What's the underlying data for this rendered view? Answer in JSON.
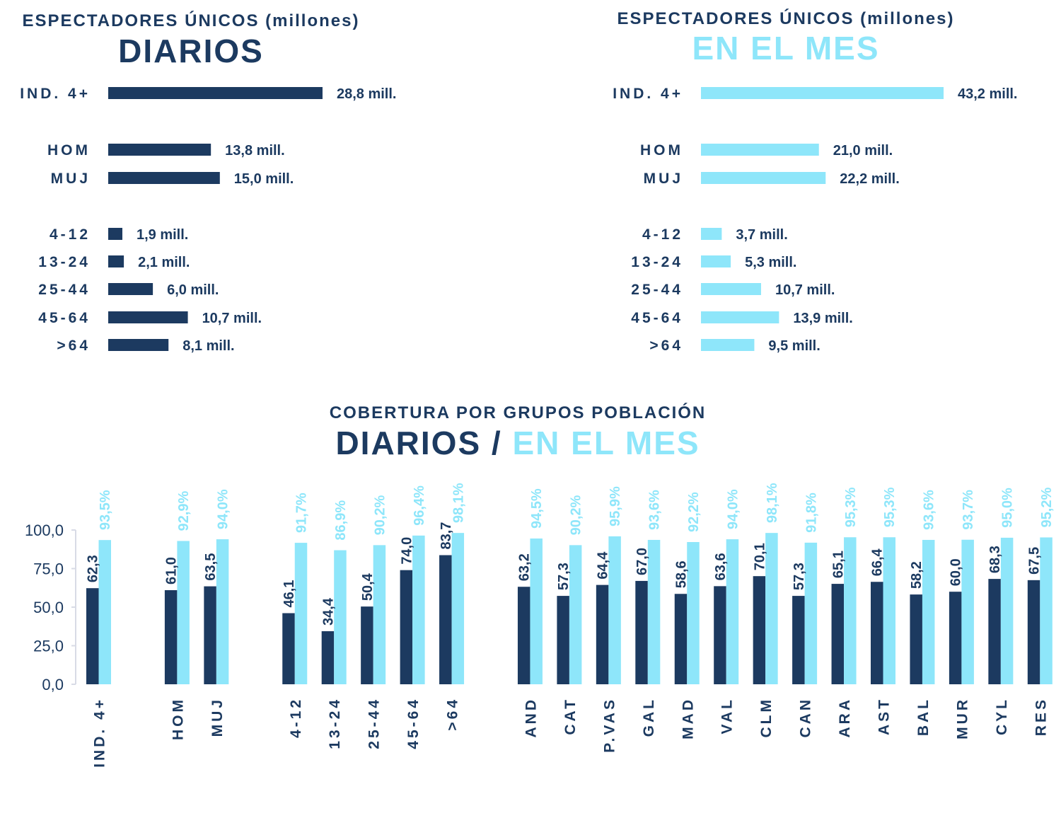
{
  "colors": {
    "dark": "#1c3a60",
    "light": "#8ee6fa",
    "axis": "#d8dbe6",
    "tick": "#1c3a60"
  },
  "chart_data": [
    {
      "type": "bar",
      "orientation": "horizontal",
      "title": "ESPECTADORES ÚNICOS (millones)",
      "subtitle": "DIARIOS",
      "categories": [
        "IND. 4+",
        "HOM",
        "MUJ",
        "4-12",
        "13-24",
        "25-44",
        "45-64",
        ">64"
      ],
      "values": [
        28.8,
        13.8,
        15.0,
        1.9,
        2.1,
        6.0,
        10.7,
        8.1
      ],
      "data_labels": [
        "28,8 mill.",
        "13,8 mill.",
        "15,0 mill.",
        "1,9 mill.",
        "2,1 mill.",
        "6,0 mill.",
        "10,7 mill.",
        "8,1 mill."
      ]
    },
    {
      "type": "bar",
      "orientation": "horizontal",
      "title": "ESPECTADORES ÚNICOS (millones)",
      "subtitle": "EN EL MES",
      "categories": [
        "IND. 4+",
        "HOM",
        "MUJ",
        "4-12",
        "13-24",
        "25-44",
        "45-64",
        ">64"
      ],
      "values": [
        43.2,
        21.0,
        22.2,
        3.7,
        5.3,
        10.7,
        13.9,
        9.5
      ],
      "data_labels": [
        "43,2 mill.",
        "21,0 mill.",
        "22,2 mill.",
        "3,7 mill.",
        "5,3 mill.",
        "10,7 mill.",
        "13,9 mill.",
        "9,5 mill."
      ]
    },
    {
      "type": "bar",
      "title": "COBERTURA POR GRUPOS POBLACIÓN",
      "subtitle_dark": "DIARIOS /",
      "subtitle_light": "EN EL MES",
      "ylim": [
        0,
        100
      ],
      "yticks": [
        "0,0",
        "25,0",
        "50,0",
        "75,0",
        "100,0"
      ],
      "ytick_values": [
        0,
        25,
        50,
        75,
        100
      ],
      "categories": [
        "IND. 4+",
        "HOM",
        "MUJ",
        "4-12",
        "13-24",
        "25-44",
        "45-64",
        ">64",
        "AND",
        "CAT",
        "P.VAS",
        "GAL",
        "MAD",
        "VAL",
        "CLM",
        "CAN",
        "ARA",
        "AST",
        "BAL",
        "MUR",
        "CYL",
        "RES"
      ],
      "groups": [
        [
          0
        ],
        [
          2,
          3
        ],
        [
          5,
          6,
          7,
          8,
          9
        ],
        [
          11,
          12,
          13,
          14,
          15,
          16,
          17,
          18,
          19,
          20,
          21,
          22,
          23,
          24
        ]
      ],
      "series": [
        {
          "name": "DIARIOS",
          "values": [
            62.3,
            61.0,
            63.5,
            46.1,
            34.4,
            50.4,
            74.0,
            83.7,
            63.2,
            57.3,
            64.4,
            67.0,
            58.6,
            63.6,
            70.1,
            57.3,
            65.1,
            66.4,
            58.2,
            60.0,
            68.3,
            67.5
          ],
          "labels": [
            "62,3",
            "61,0",
            "63,5",
            "46,1",
            "34,4",
            "50,4",
            "74,0",
            "83,7",
            "63,2",
            "57,3",
            "64,4",
            "67,0",
            "58,6",
            "63,6",
            "70,1",
            "57,3",
            "65,1",
            "66,4",
            "58,2",
            "60,0",
            "68,3",
            "67,5"
          ]
        },
        {
          "name": "EN EL MES",
          "values": [
            93.5,
            92.9,
            94.0,
            91.7,
            86.9,
            90.2,
            96.4,
            98.1,
            94.5,
            90.2,
            95.9,
            93.6,
            92.2,
            94.0,
            98.1,
            91.8,
            95.3,
            95.3,
            93.6,
            93.7,
            95.0,
            95.2
          ],
          "labels": [
            "93,5%",
            "92,9%",
            "94,0%",
            "91,7%",
            "86,9%",
            "90,2%",
            "96,4%",
            "98,1%",
            "94,5%",
            "90,2%",
            "95,9%",
            "93,6%",
            "92,2%",
            "94,0%",
            "98,1%",
            "91,8%",
            "95,3%",
            "95,3%",
            "93,6%",
            "93,7%",
            "95,0%",
            "95,2%"
          ]
        }
      ]
    }
  ]
}
